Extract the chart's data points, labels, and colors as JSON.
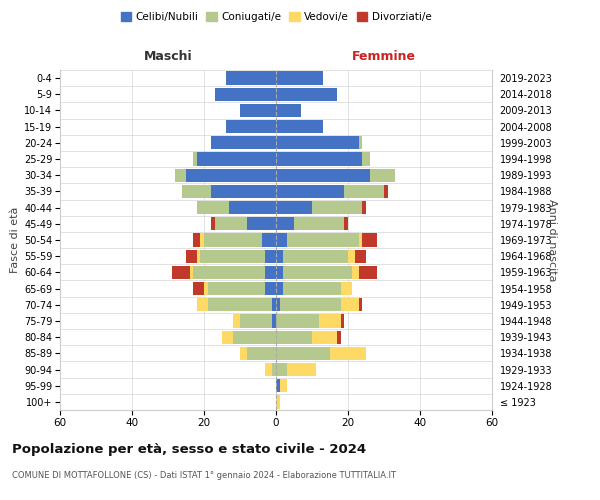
{
  "age_groups": [
    "100+",
    "95-99",
    "90-94",
    "85-89",
    "80-84",
    "75-79",
    "70-74",
    "65-69",
    "60-64",
    "55-59",
    "50-54",
    "45-49",
    "40-44",
    "35-39",
    "30-34",
    "25-29",
    "20-24",
    "15-19",
    "10-14",
    "5-9",
    "0-4"
  ],
  "birth_years": [
    "≤ 1923",
    "1924-1928",
    "1929-1933",
    "1934-1938",
    "1939-1943",
    "1944-1948",
    "1949-1953",
    "1954-1958",
    "1959-1963",
    "1964-1968",
    "1969-1973",
    "1974-1978",
    "1979-1983",
    "1984-1988",
    "1989-1993",
    "1994-1998",
    "1999-2003",
    "2004-2008",
    "2009-2013",
    "2014-2018",
    "2019-2023"
  ],
  "colors": {
    "celibi": "#4472c4",
    "coniugati": "#b5c98e",
    "vedovi": "#ffd966",
    "divorziati": "#c0392b"
  },
  "males": {
    "celibi": [
      0,
      0,
      0,
      0,
      0,
      1,
      1,
      3,
      3,
      3,
      4,
      8,
      13,
      18,
      25,
      22,
      18,
      14,
      10,
      17,
      14
    ],
    "coniugati": [
      0,
      0,
      1,
      8,
      12,
      9,
      18,
      16,
      20,
      18,
      16,
      9,
      9,
      8,
      3,
      1,
      0,
      0,
      0,
      0,
      0
    ],
    "vedovi": [
      0,
      0,
      2,
      2,
      3,
      2,
      3,
      1,
      1,
      1,
      1,
      0,
      0,
      0,
      0,
      0,
      0,
      0,
      0,
      0,
      0
    ],
    "divorziati": [
      0,
      0,
      0,
      0,
      0,
      0,
      0,
      3,
      5,
      3,
      2,
      1,
      0,
      0,
      0,
      0,
      0,
      0,
      0,
      0,
      0
    ]
  },
  "females": {
    "celibi": [
      0,
      1,
      0,
      0,
      0,
      0,
      1,
      2,
      2,
      2,
      3,
      5,
      10,
      19,
      26,
      24,
      23,
      13,
      7,
      17,
      13
    ],
    "coniugati": [
      0,
      0,
      3,
      15,
      10,
      12,
      17,
      16,
      19,
      18,
      20,
      14,
      14,
      11,
      7,
      2,
      1,
      0,
      0,
      0,
      0
    ],
    "vedovi": [
      1,
      2,
      8,
      10,
      7,
      6,
      5,
      3,
      2,
      2,
      1,
      0,
      0,
      0,
      0,
      0,
      0,
      0,
      0,
      0,
      0
    ],
    "divorziati": [
      0,
      0,
      0,
      0,
      1,
      1,
      1,
      0,
      5,
      3,
      4,
      1,
      1,
      1,
      0,
      0,
      0,
      0,
      0,
      0,
      0
    ]
  },
  "title": "Popolazione per età, sesso e stato civile - 2024",
  "subtitle": "COMUNE DI MOTTAFOLLONE (CS) - Dati ISTAT 1° gennaio 2024 - Elaborazione TUTTITALIA.IT",
  "xlabel_left": "Maschi",
  "xlabel_right": "Femmine",
  "ylabel_left": "Fasce di età",
  "ylabel_right": "Anni di nascita",
  "legend_labels": [
    "Celibi/Nubili",
    "Coniugati/e",
    "Vedovi/e",
    "Divorziati/e"
  ],
  "xlim": 60,
  "background_color": "#ffffff"
}
